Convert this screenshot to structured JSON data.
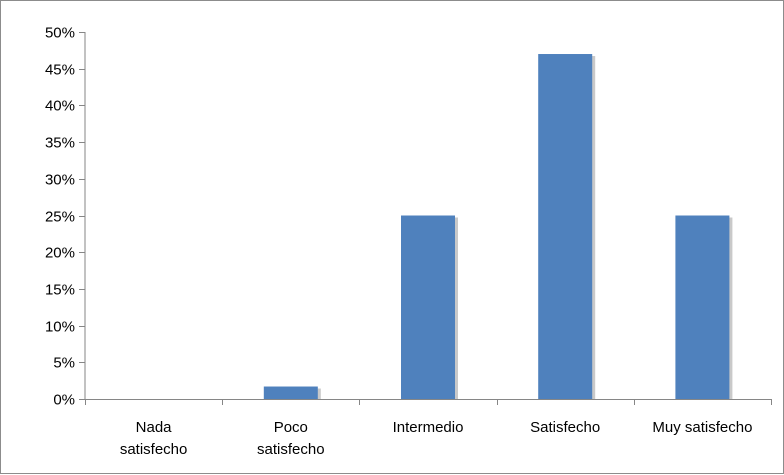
{
  "chart_data": {
    "type": "bar",
    "categories": [
      [
        "Nada",
        "satisfecho"
      ],
      [
        "Poco",
        "satisfecho"
      ],
      [
        "Intermedio"
      ],
      [
        "Satisfecho"
      ],
      [
        "Muy satisfecho"
      ]
    ],
    "values": [
      0,
      1.7,
      25,
      47,
      25
    ],
    "value_unit": "%",
    "ylim": [
      0,
      50
    ],
    "yticks": [
      0,
      5,
      10,
      15,
      20,
      25,
      30,
      35,
      40,
      45,
      50
    ],
    "ytick_labels": [
      "0%",
      "5%",
      "10%",
      "15%",
      "20%",
      "25%",
      "30%",
      "35%",
      "40%",
      "45%",
      "50%"
    ],
    "grid": false,
    "legend": "none",
    "colors": {
      "bar": "#4f81bd",
      "bar_shadow": "#c9c9c9",
      "axis": "#868686"
    }
  }
}
